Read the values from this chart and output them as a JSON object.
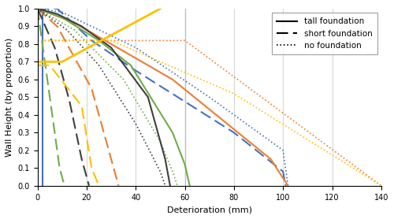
{
  "xlabel": "Deterioration (mm)",
  "ylabel": "Wall Height (by proportion)",
  "xlim": [
    0,
    140
  ],
  "ylim": [
    0,
    1.0
  ],
  "xticks": [
    0,
    20,
    40,
    60,
    80,
    100,
    120,
    140
  ],
  "yticks": [
    0,
    0.1,
    0.2,
    0.3,
    0.4,
    0.5,
    0.6,
    0.7,
    0.8,
    0.9,
    1.0
  ],
  "lines": [
    {
      "color": "#4472C4",
      "style": "solid",
      "lw": 1.5,
      "x": [
        2,
        2
      ],
      "y": [
        1.0,
        0.0
      ]
    },
    {
      "color": "#4472C4",
      "style": "dash2",
      "lw": 1.5,
      "x": [
        0,
        8,
        22,
        40,
        80,
        100,
        101
      ],
      "y": [
        1.0,
        1.0,
        0.82,
        0.65,
        0.3,
        0.08,
        0.0
      ]
    },
    {
      "color": "#4472C4",
      "style": "dotted",
      "lw": 1.2,
      "x": [
        0,
        10,
        40,
        70,
        100,
        102
      ],
      "y": [
        1.0,
        0.98,
        0.78,
        0.5,
        0.2,
        0.0
      ]
    },
    {
      "color": "#ED7D31",
      "style": "solid",
      "lw": 1.5,
      "x": [
        0,
        15,
        55,
        95,
        102
      ],
      "y": [
        1.0,
        0.92,
        0.6,
        0.15,
        0.0
      ]
    },
    {
      "color": "#ED7D31",
      "style": "dash2",
      "lw": 1.5,
      "x": [
        0,
        8,
        22,
        30,
        33
      ],
      "y": [
        1.0,
        0.9,
        0.55,
        0.15,
        0.0
      ]
    },
    {
      "color": "#ED7D31",
      "style": "dotted",
      "lw": 1.2,
      "x": [
        0,
        60,
        140
      ],
      "y": [
        0.82,
        0.82,
        0.0
      ]
    },
    {
      "color": "#70AD47",
      "style": "solid",
      "lw": 1.5,
      "x": [
        0,
        10,
        25,
        38,
        55,
        60,
        62
      ],
      "y": [
        1.0,
        0.95,
        0.82,
        0.68,
        0.3,
        0.12,
        0.0
      ]
    },
    {
      "color": "#70AD47",
      "style": "dash2",
      "lw": 1.5,
      "x": [
        0,
        5,
        9,
        11
      ],
      "y": [
        1.0,
        0.5,
        0.1,
        0.0
      ]
    },
    {
      "color": "#70AD47",
      "style": "dotted",
      "lw": 1.2,
      "x": [
        0,
        15,
        35,
        50,
        55,
        57
      ],
      "y": [
        1.0,
        0.88,
        0.6,
        0.25,
        0.08,
        0.0
      ]
    },
    {
      "color": "#404040",
      "style": "solid",
      "lw": 1.5,
      "x": [
        0,
        8,
        18,
        30,
        45,
        52,
        54
      ],
      "y": [
        1.0,
        0.97,
        0.9,
        0.78,
        0.5,
        0.15,
        0.0
      ]
    },
    {
      "color": "#404040",
      "style": "dash2",
      "lw": 1.5,
      "x": [
        0,
        7,
        13,
        18,
        20,
        21
      ],
      "y": [
        1.0,
        0.78,
        0.48,
        0.15,
        0.05,
        0.0
      ]
    },
    {
      "color": "#404040",
      "style": "dotted",
      "lw": 1.2,
      "x": [
        0,
        12,
        25,
        40,
        50,
        52
      ],
      "y": [
        1.0,
        0.88,
        0.68,
        0.35,
        0.08,
        0.0
      ]
    },
    {
      "color": "#FFC000",
      "style": "solid",
      "lw": 2.0,
      "x": [
        0,
        10,
        50,
        50
      ],
      "y": [
        0.7,
        0.7,
        1.0,
        1.0
      ]
    },
    {
      "color": "#FFC000",
      "style": "dash2",
      "lw": 1.5,
      "x": [
        0,
        5,
        18,
        22,
        25
      ],
      "y": [
        0.68,
        0.68,
        0.45,
        0.1,
        0.0
      ]
    },
    {
      "color": "#FFC000",
      "style": "dotted",
      "lw": 1.2,
      "x": [
        0,
        30,
        80,
        140
      ],
      "y": [
        0.82,
        0.82,
        0.52,
        0.0
      ]
    }
  ]
}
